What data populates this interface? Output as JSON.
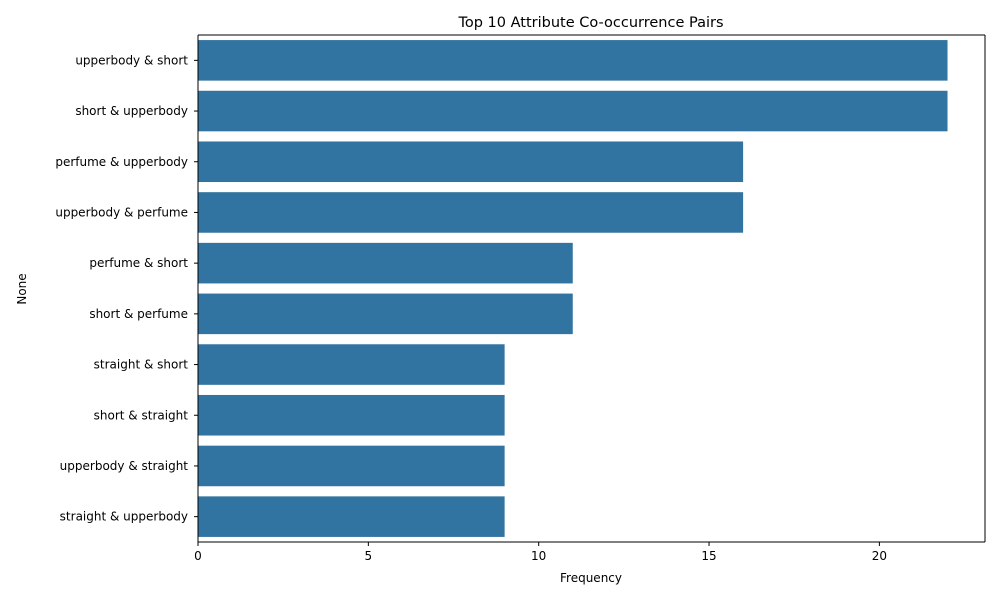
{
  "chart_data": {
    "type": "bar",
    "orientation": "horizontal",
    "title": "Top 10 Attribute Co-occurrence Pairs",
    "xlabel": "Frequency",
    "ylabel": "None",
    "categories": [
      "upperbody & short",
      "short & upperbody",
      "perfume & upperbody",
      "upperbody & perfume",
      "perfume & short",
      "short & perfume",
      "straight & short",
      "short & straight",
      "upperbody & straight",
      "straight & upperbody"
    ],
    "values": [
      22,
      22,
      16,
      16,
      11,
      11,
      9,
      9,
      9,
      9
    ],
    "xlim": [
      0,
      23.1
    ],
    "xticks": [
      0,
      5,
      10,
      15,
      20
    ],
    "bar_color": "#3274a1",
    "grid": false,
    "legend": "none"
  }
}
